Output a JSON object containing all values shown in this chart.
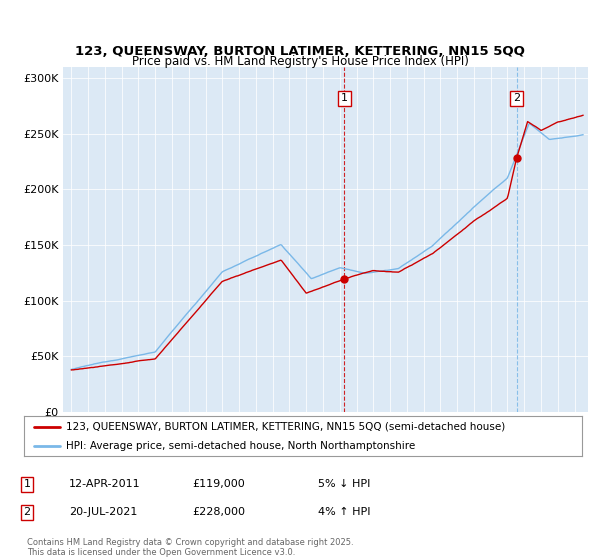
{
  "title1": "123, QUEENSWAY, BURTON LATIMER, KETTERING, NN15 5QQ",
  "title2": "Price paid vs. HM Land Registry's House Price Index (HPI)",
  "bg_color": "#dce9f5",
  "hpi_color": "#7ab8e8",
  "price_color": "#cc0000",
  "dashed1_color": "#cc0000",
  "dashed2_color": "#7ab8e8",
  "marker1_x": 2011.28,
  "marker2_x": 2021.55,
  "marker1_price": 119000,
  "marker2_price": 228000,
  "ylim_max": 310000,
  "ylim_min": 0,
  "xlim_min": 1994.5,
  "xlim_max": 2025.8,
  "legend_label1": "123, QUEENSWAY, BURTON LATIMER, KETTERING, NN15 5QQ (semi-detached house)",
  "legend_label2": "HPI: Average price, semi-detached house, North Northamptonshire",
  "ann1_date": "12-APR-2011",
  "ann1_price": "£119,000",
  "ann1_hpi": "5% ↓ HPI",
  "ann2_date": "20-JUL-2021",
  "ann2_price": "£228,000",
  "ann2_hpi": "4% ↑ HPI",
  "footer": "Contains HM Land Registry data © Crown copyright and database right 2025.\nThis data is licensed under the Open Government Licence v3.0.",
  "yticks": [
    0,
    50000,
    100000,
    150000,
    200000,
    250000,
    300000
  ],
  "ytick_labels": [
    "£0",
    "£50K",
    "£100K",
    "£150K",
    "£200K",
    "£250K",
    "£300K"
  ],
  "xticks": [
    1995,
    1996,
    1997,
    1998,
    1999,
    2000,
    2001,
    2002,
    2003,
    2004,
    2005,
    2006,
    2007,
    2008,
    2009,
    2010,
    2011,
    2012,
    2013,
    2014,
    2015,
    2016,
    2017,
    2018,
    2019,
    2020,
    2021,
    2022,
    2023,
    2024,
    2025
  ]
}
